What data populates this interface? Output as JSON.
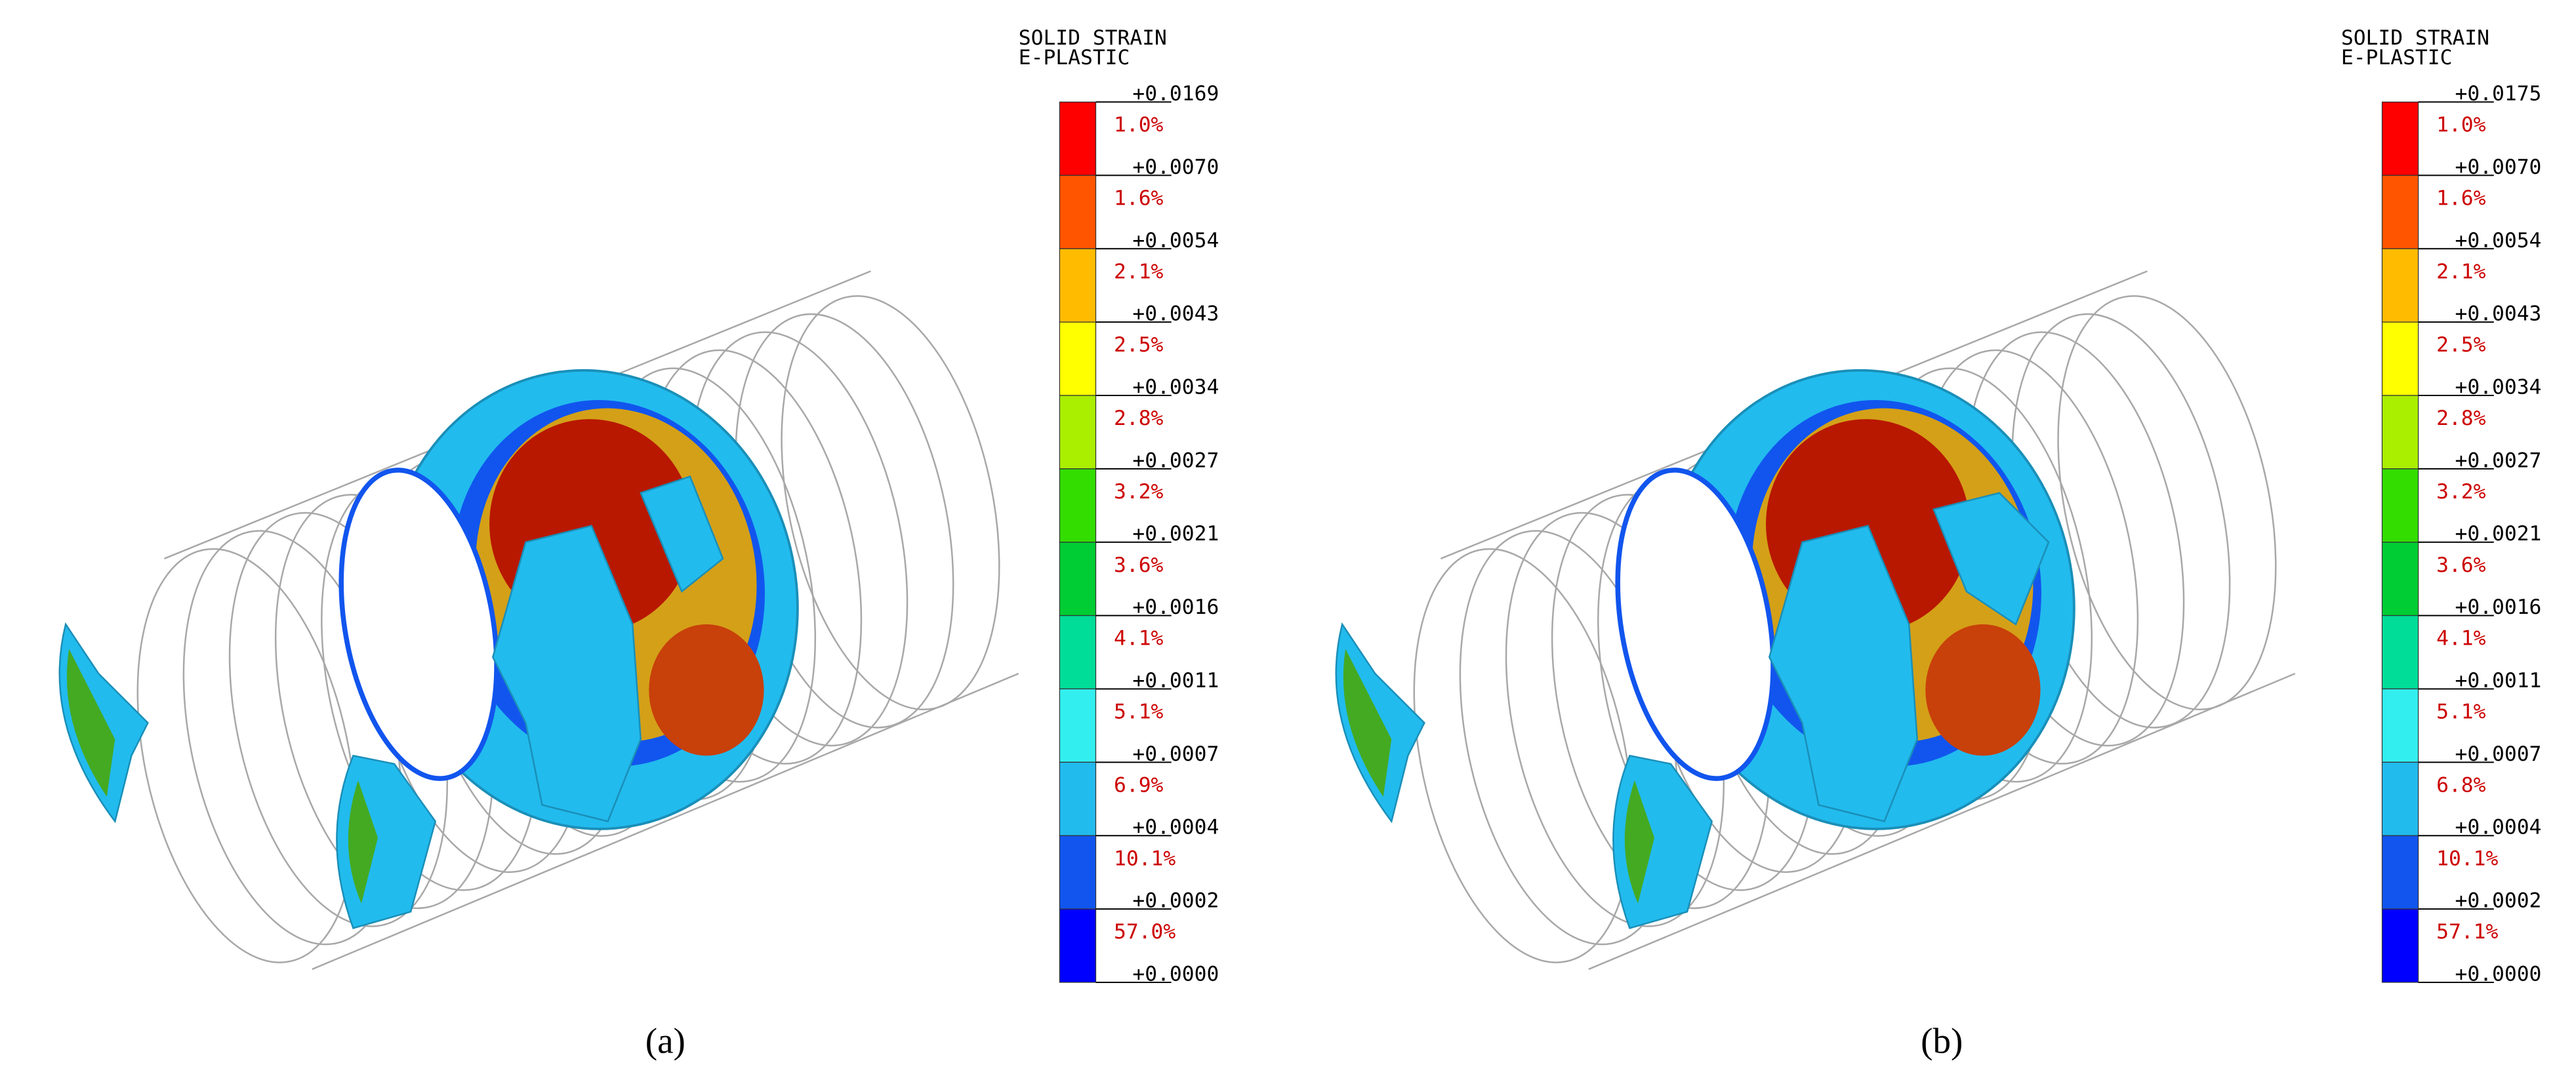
{
  "panels": [
    {
      "caption": "(a)",
      "legend": {
        "title": [
          "SOLID STRAIN",
          "E-PLASTIC"
        ],
        "boundaries": [
          "+0.0169",
          "+0.0070",
          "+0.0054",
          "+0.0043",
          "+0.0034",
          "+0.0027",
          "+0.0021",
          "+0.0016",
          "+0.0011",
          "+0.0007",
          "+0.0004",
          "+0.0002",
          "+0.0000"
        ],
        "percents": [
          "1.0%",
          "1.6%",
          "2.1%",
          "2.5%",
          "2.8%",
          "3.2%",
          "3.6%",
          "4.1%",
          "5.1%",
          "6.9%",
          "10.1%",
          "57.0%"
        ],
        "colors": [
          "#ff0000",
          "#ff5500",
          "#ffbb00",
          "#ffff00",
          "#aaee00",
          "#33dd00",
          "#00cc33",
          "#00dd99",
          "#33eeee",
          "#22bbee",
          "#1155ee",
          "#0000ff"
        ]
      }
    },
    {
      "caption": "(b)",
      "legend": {
        "title": [
          "SOLID STRAIN",
          "E-PLASTIC"
        ],
        "boundaries": [
          "+0.0175",
          "+0.0070",
          "+0.0054",
          "+0.0043",
          "+0.0034",
          "+0.0027",
          "+0.0021",
          "+0.0016",
          "+0.0011",
          "+0.0007",
          "+0.0004",
          "+0.0002",
          "+0.0000"
        ],
        "percents": [
          "1.0%",
          "1.6%",
          "2.1%",
          "2.5%",
          "2.8%",
          "3.2%",
          "3.6%",
          "4.1%",
          "5.1%",
          "6.8%",
          "10.1%",
          "57.1%"
        ],
        "colors": [
          "#ff0000",
          "#ff5500",
          "#ffbb00",
          "#ffff00",
          "#aaee00",
          "#33dd00",
          "#00cc33",
          "#00dd99",
          "#33eeee",
          "#22bbee",
          "#1155ee",
          "#0000ff"
        ]
      }
    }
  ]
}
